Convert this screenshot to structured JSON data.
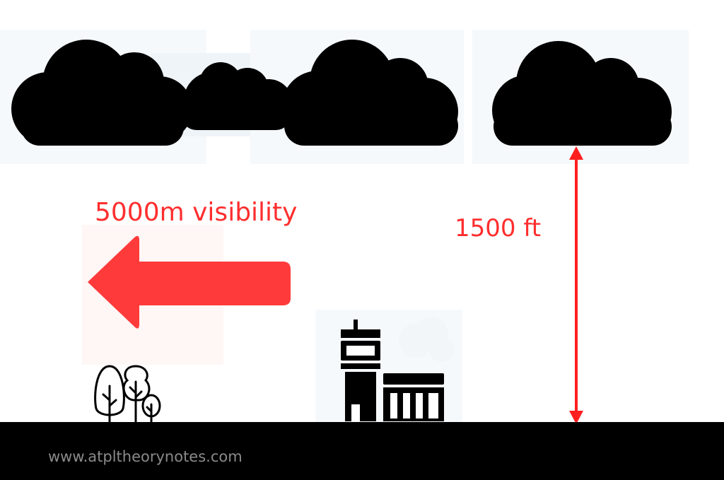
{
  "diagram": {
    "visibility_label": "5000m visibility",
    "cloud_base_label": "1500 ft",
    "website": "www.atpltheorynotes.com"
  },
  "icons": {
    "clouds": "cloud-icon",
    "arrow": "left-arrow-icon",
    "trees": "trees-icon",
    "control_tower": "control-tower-icon",
    "hangar": "hangar-building-icon",
    "height_marker": "double-headed-arrow-icon"
  },
  "colors": {
    "accent_red": "#ff2e2e",
    "arrow_fill": "#ff3a3a",
    "silhouette": "#000000",
    "ground": "#000000",
    "website_text": "#8a8a8a"
  }
}
